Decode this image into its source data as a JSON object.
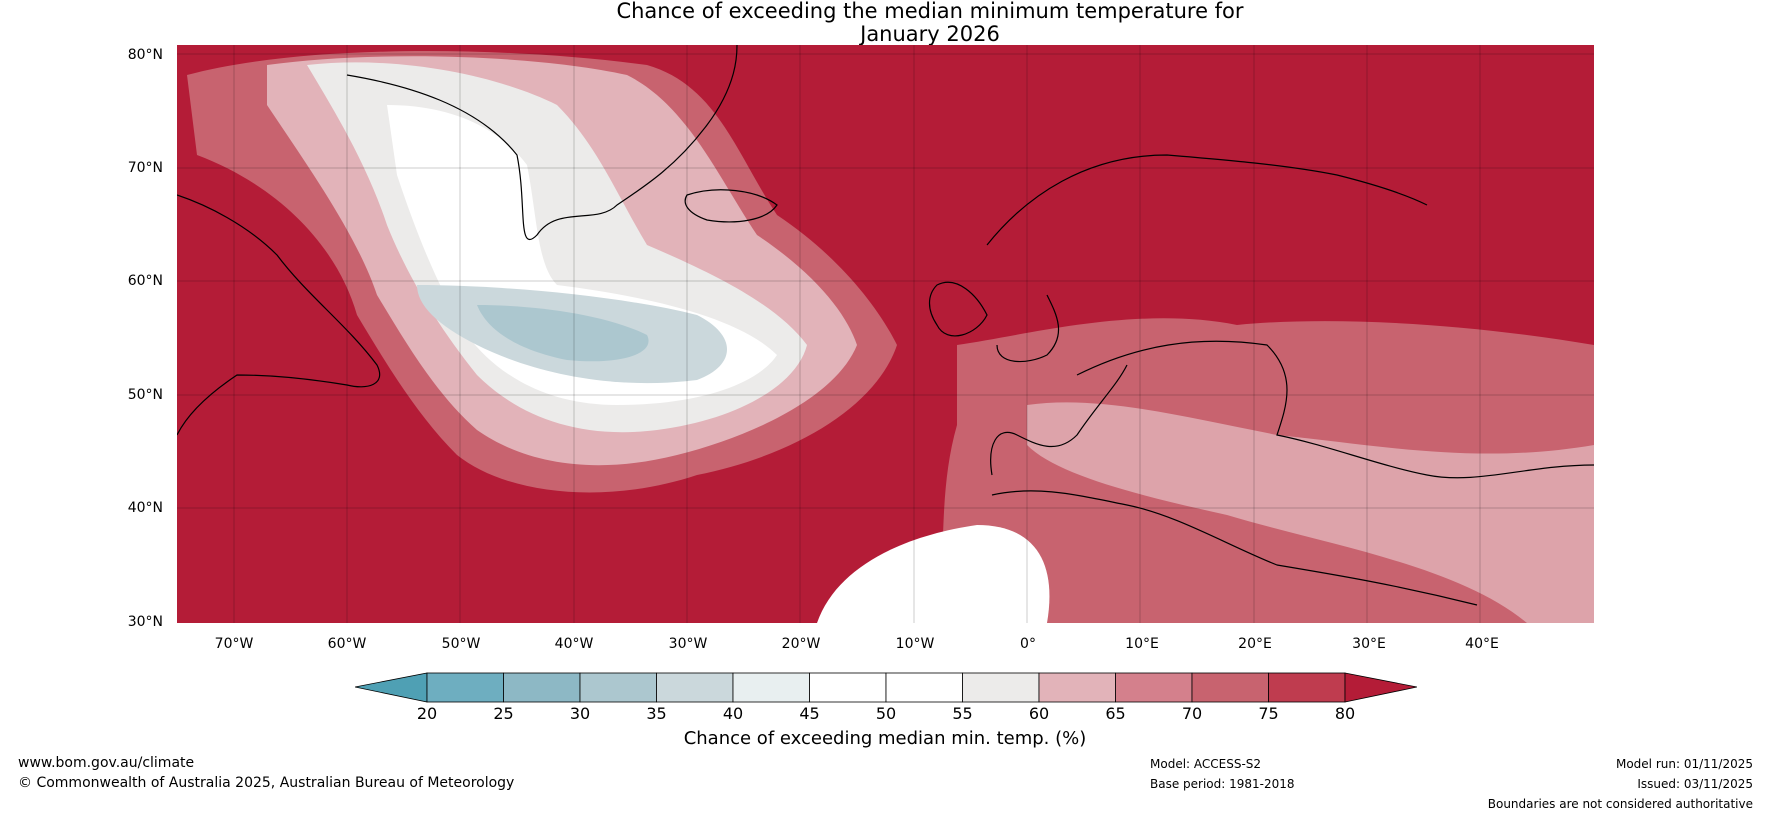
{
  "title": {
    "line1": "Chance of exceeding the median minimum temperature for",
    "line2": "January 2026"
  },
  "map": {
    "lat_labels": [
      "80°N",
      "70°N",
      "60°N",
      "50°N",
      "40°N",
      "30°N"
    ],
    "lon_labels": [
      "70°W",
      "60°W",
      "50°W",
      "40°W",
      "30°W",
      "20°W",
      "10°W",
      "0°",
      "10°E",
      "20°E",
      "30°E",
      "40°E"
    ],
    "lat_range": [
      30,
      80
    ],
    "lon_range": [
      -75,
      50
    ],
    "background_color": "#b41c37"
  },
  "colorbar": {
    "ticks": [
      "20",
      "25",
      "30",
      "35",
      "40",
      "45",
      "50",
      "55",
      "60",
      "65",
      "70",
      "75",
      "80"
    ],
    "colors": [
      "#4fa0b4",
      "#6eaec0",
      "#8db8c5",
      "#acc7cf",
      "#cbd8dc",
      "#e8eff0",
      "#ffffff",
      "#ffffff",
      "#ecebea",
      "#e2b3b9",
      "#d4808c",
      "#c8636f",
      "#bf3c4f",
      "#b41c37"
    ],
    "label": "Chance of exceeding median min. temp. (%)"
  },
  "footer": {
    "website": "www.bom.gov.au/climate",
    "copyright": "© Commonwealth of Australia 2025, Australian Bureau of Meteorology",
    "model": "Model: ACCESS-S2",
    "base_period": "Base period: 1981-2018",
    "model_run": "Model run: 01/11/2025",
    "issued": "Issued: 03/11/2025",
    "disclaimer": "Boundaries are not considered authoritative"
  }
}
